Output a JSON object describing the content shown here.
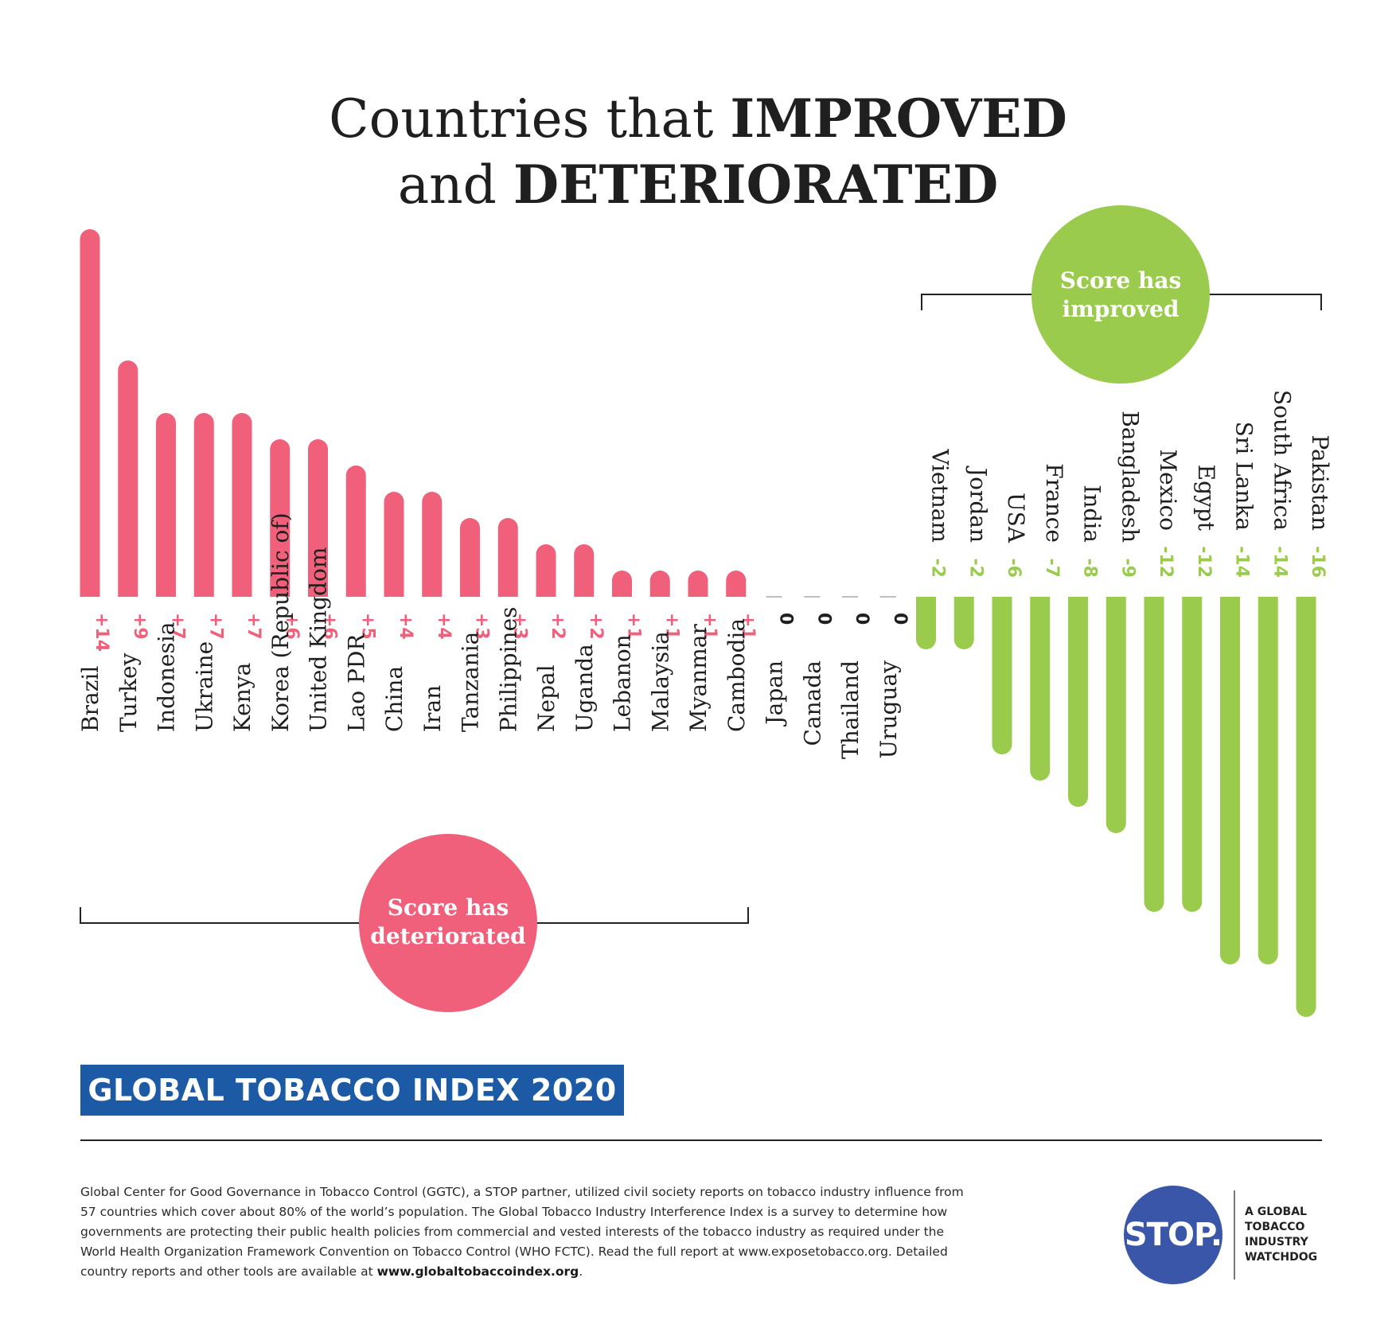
{
  "title": {
    "part1": "Countries that ",
    "bold1": "IMPROVED",
    "part2": "and ",
    "bold2": "DETERIORATED"
  },
  "callouts": {
    "improved": [
      "Score has",
      "improved"
    ],
    "deteriorated": [
      "Score has",
      "deteriorated"
    ]
  },
  "colors": {
    "deteriorated": "#f0607a",
    "improved": "#9bcb4c",
    "zero_label": "#1f1f1f",
    "banner": "#1c5aa6",
    "logo": "#3a56a8"
  },
  "chart_data": {
    "type": "bar",
    "categories": [
      "Brazil",
      "Turkey",
      "Indonesia",
      "Ukraine",
      "Kenya",
      "Korea (Republic of)",
      "United Kingdom",
      "Lao PDR",
      "China",
      "Iran",
      "Tanzania",
      "Philippines",
      "Nepal",
      "Uganda",
      "Lebanon",
      "Malaysia",
      "Myanmar",
      "Cambodia",
      "Japan",
      "Canada",
      "Thailand",
      "Uruguay",
      "Vietnam",
      "Jordan",
      "USA",
      "France",
      "India",
      "Bangladesh",
      "Mexico",
      "Egypt",
      "Sri Lanka",
      "South Africa",
      "Pakistan"
    ],
    "values": [
      14,
      9,
      7,
      7,
      7,
      6,
      6,
      5,
      4,
      4,
      3,
      3,
      2,
      2,
      1,
      1,
      1,
      1,
      0,
      0,
      0,
      0,
      -2,
      -2,
      -6,
      -7,
      -8,
      -9,
      -12,
      -12,
      -14,
      -14,
      -16
    ],
    "value_labels": [
      "+14",
      "+9",
      "+7",
      "+7",
      "+7",
      "+6",
      "+6",
      "+5",
      "+4",
      "+4",
      "+3",
      "+3",
      "+2",
      "+2",
      "+1",
      "+1",
      "+1",
      "+1",
      "0",
      "0",
      "0",
      "0",
      "-2",
      "-2",
      "-6",
      "-7",
      "-8",
      "-9",
      "-12",
      "-12",
      "-14",
      "-14",
      "-16"
    ],
    "title": "",
    "xlabel": "",
    "ylabel": ""
  },
  "banner": "GLOBAL TOBACCO INDEX 2020",
  "footer": {
    "text": "Global Center for Good Governance in Tobacco Control (GGTC), a STOP partner, utilized civil society reports on tobacco industry influence from 57 countries which cover about 80% of the world’s population. The Global Tobacco Industry Interference Index is a survey to determine how governments are protecting their public health policies from commercial and vested interests of the tobacco industry as required under the World Health Organization Framework Convention on Tobacco Control (WHO FCTC). Read the full report at www.exposetobacco.org. Detailed country reports and other tools are available at ",
    "link": "www.globaltobaccoindex.org",
    "end": "."
  },
  "logo": {
    "mark": "STOP.",
    "tagline": [
      "A GLOBAL",
      "TOBACCO",
      "INDUSTRY",
      "WATCHDOG"
    ]
  }
}
